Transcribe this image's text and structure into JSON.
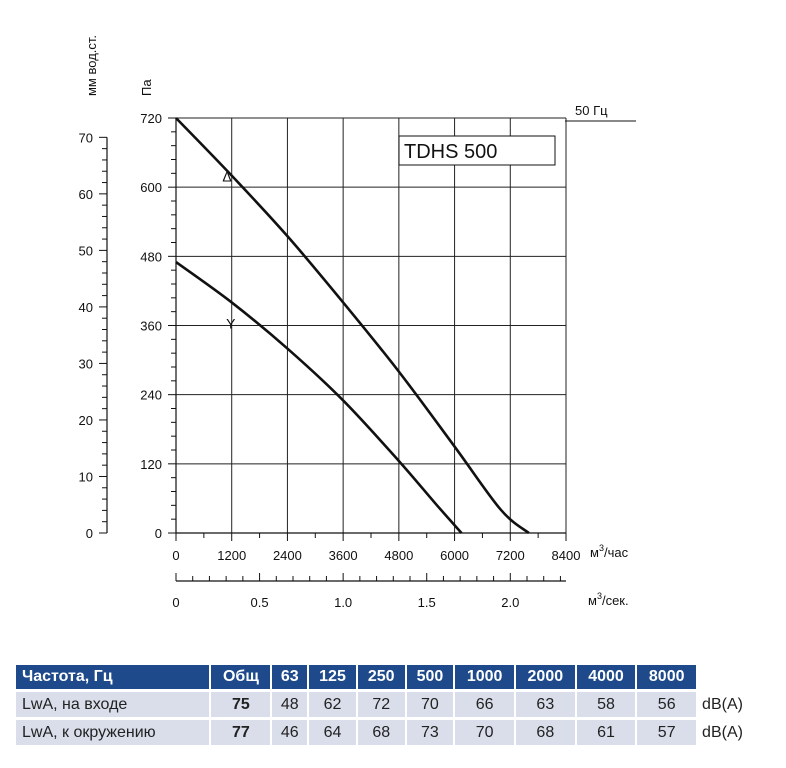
{
  "chart_data": {
    "type": "line",
    "model_label": "TDHS 500",
    "frequency_label": "50 Гц",
    "y_axis_pa": {
      "unit": "Па",
      "ticks": [
        0,
        120,
        240,
        360,
        480,
        600,
        720
      ],
      "ylim": [
        0,
        720
      ]
    },
    "y_axis_mm": {
      "unit": "мм вод.ст.",
      "ticks": [
        0,
        10,
        20,
        30,
        40,
        50,
        60,
        70
      ]
    },
    "x_axis_hour": {
      "unit": "м³/час",
      "unit_prefix": "м",
      "unit_sup": "3",
      "unit_suffix": "/час",
      "ticks": [
        0,
        1200,
        2400,
        3600,
        4800,
        6000,
        7200,
        8400
      ],
      "xlim": [
        0,
        8400
      ]
    },
    "x_axis_sec": {
      "unit": "м³/сек.",
      "unit_prefix": "м",
      "unit_sup": "3",
      "unit_suffix": "/сек.",
      "ticks": [
        "0",
        "0.5",
        "1.0",
        "1.5",
        "2.0"
      ],
      "tick_values": [
        0,
        0.5,
        1.0,
        1.5,
        2.0
      ]
    },
    "grid": true,
    "series": [
      {
        "name": "Δ",
        "x": [
          0,
          1200,
          2400,
          3600,
          4800,
          6000,
          7000,
          7600
        ],
        "y": [
          720,
          620,
          515,
          400,
          280,
          150,
          40,
          0
        ]
      },
      {
        "name": "Y",
        "x": [
          0,
          1200,
          2400,
          3600,
          4800,
          5600,
          6150
        ],
        "y": [
          470,
          400,
          320,
          230,
          125,
          50,
          0
        ]
      }
    ]
  },
  "noise_table": {
    "headers": [
      "Частота, Гц",
      "Общ",
      "63",
      "125",
      "250",
      "500",
      "1000",
      "2000",
      "4000",
      "8000"
    ],
    "rows": [
      {
        "label": "LwA, на входе",
        "total": "75",
        "values": [
          "48",
          "62",
          "72",
          "70",
          "66",
          "63",
          "58",
          "56"
        ],
        "unit": "dB(A)"
      },
      {
        "label": "LwA, к окружению",
        "total": "77",
        "values": [
          "46",
          "64",
          "68",
          "73",
          "70",
          "68",
          "61",
          "57"
        ],
        "unit": "dB(A)"
      }
    ]
  }
}
